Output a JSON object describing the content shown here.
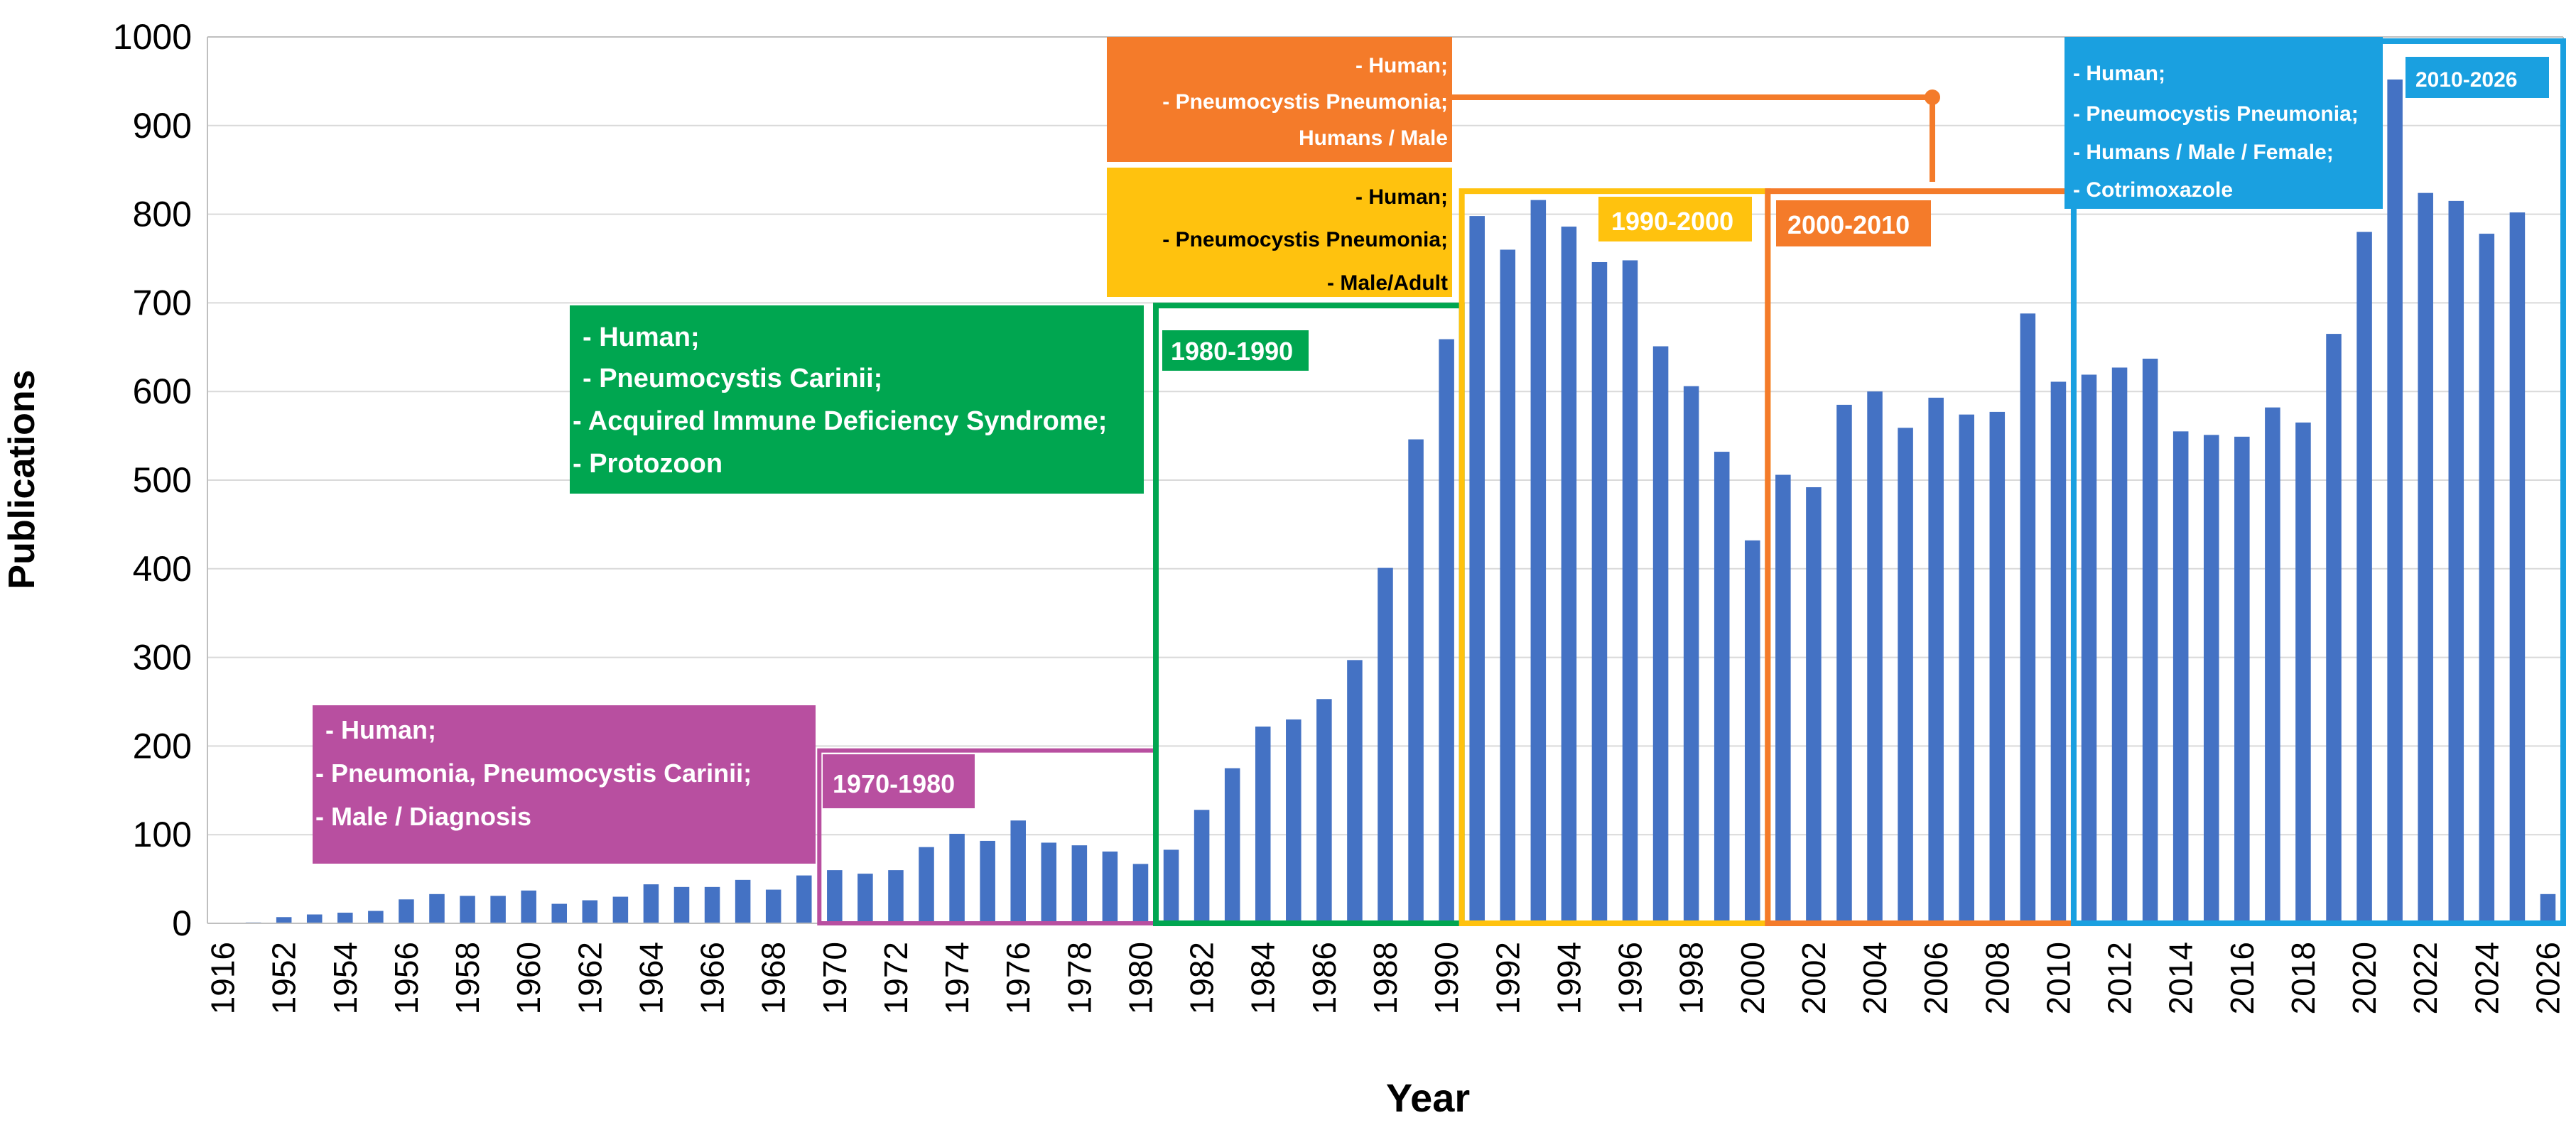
{
  "chart_data": {
    "type": "bar",
    "xlabel": "Year",
    "ylabel": "Publications",
    "ylim": [
      0,
      1000
    ],
    "yticks": [
      0,
      100,
      200,
      300,
      400,
      500,
      600,
      700,
      800,
      900,
      1000
    ],
    "grid": true,
    "bar_color": "#4472c4",
    "categories": [
      "1916",
      "1951",
      "1952",
      "1953",
      "1954",
      "1955",
      "1956",
      "1957",
      "1958",
      "1959",
      "1960",
      "1961",
      "1962",
      "1963",
      "1964",
      "1965",
      "1966",
      "1967",
      "1968",
      "1969",
      "1970",
      "1971",
      "1972",
      "1973",
      "1974",
      "1975",
      "1976",
      "1977",
      "1978",
      "1979",
      "1980",
      "1981",
      "1982",
      "1983",
      "1984",
      "1985",
      "1986",
      "1987",
      "1988",
      "1989",
      "1990",
      "1991",
      "1992",
      "1993",
      "1994",
      "1995",
      "1996",
      "1997",
      "1998",
      "1999",
      "2000",
      "2001",
      "2002",
      "2003",
      "2004",
      "2005",
      "2006",
      "2007",
      "2008",
      "2009",
      "2010",
      "2011",
      "2012",
      "2013",
      "2014",
      "2015",
      "2016",
      "2017",
      "2018",
      "2019",
      "2020",
      "2021",
      "2022",
      "2023",
      "2024",
      "2025",
      "2026"
    ],
    "values": [
      0,
      1,
      7,
      10,
      12,
      14,
      27,
      33,
      31,
      31,
      37,
      22,
      26,
      30,
      44,
      41,
      41,
      49,
      38,
      54,
      60,
      56,
      60,
      86,
      101,
      93,
      116,
      91,
      88,
      81,
      67,
      83,
      128,
      175,
      222,
      230,
      253,
      297,
      401,
      546,
      659,
      798,
      760,
      816,
      786,
      746,
      748,
      651,
      606,
      532,
      432,
      506,
      492,
      585,
      600,
      559,
      593,
      574,
      577,
      688,
      611,
      619,
      627,
      637,
      555,
      551,
      549,
      582,
      565,
      665,
      780,
      952,
      824,
      815,
      778,
      802,
      33
    ],
    "tick_labels": [
      "1916",
      "1952",
      "1954",
      "1956",
      "1958",
      "1960",
      "1962",
      "1964",
      "1966",
      "1968",
      "1970",
      "1972",
      "1974",
      "1976",
      "1978",
      "1980",
      "1982",
      "1984",
      "1986",
      "1988",
      "1990",
      "1992",
      "1994",
      "1996",
      "1998",
      "2000",
      "2002",
      "2004",
      "2006",
      "2008",
      "2010",
      "2012",
      "2014",
      "2016",
      "2018",
      "2020",
      "2022",
      "2024",
      "2026"
    ],
    "periods": [
      {
        "label": "1970-1980",
        "color": "#b84fa0",
        "terms": [
          "- Human;",
          "- Pneumonia, Pneumocystis Carinii;",
          "- Male / Diagnosis"
        ]
      },
      {
        "label": "1980-1990",
        "color": "#00a650",
        "terms": [
          "- Human;",
          "- Pneumocystis Carinii;",
          "- Acquired Immune Deficiency Syndrome;",
          "- Protozoon"
        ]
      },
      {
        "label": "1990-2000",
        "color": "#ffc20e",
        "terms": [
          "- Human;",
          "- Pneumocystis Pneumonia;",
          "- Male/Adult"
        ]
      },
      {
        "label": "2000-2010",
        "color": "#f47b2a",
        "terms": [
          "- Human;",
          "- Pneumocystis Pneumonia;",
          "Humans / Male"
        ]
      },
      {
        "label": "2010-2026",
        "color": "#1aa0e0",
        "terms": [
          "- Human;",
          "- Pneumocystis Pneumonia;",
          "- Humans / Male / Female;",
          "- Cotrimoxazole"
        ]
      }
    ]
  }
}
